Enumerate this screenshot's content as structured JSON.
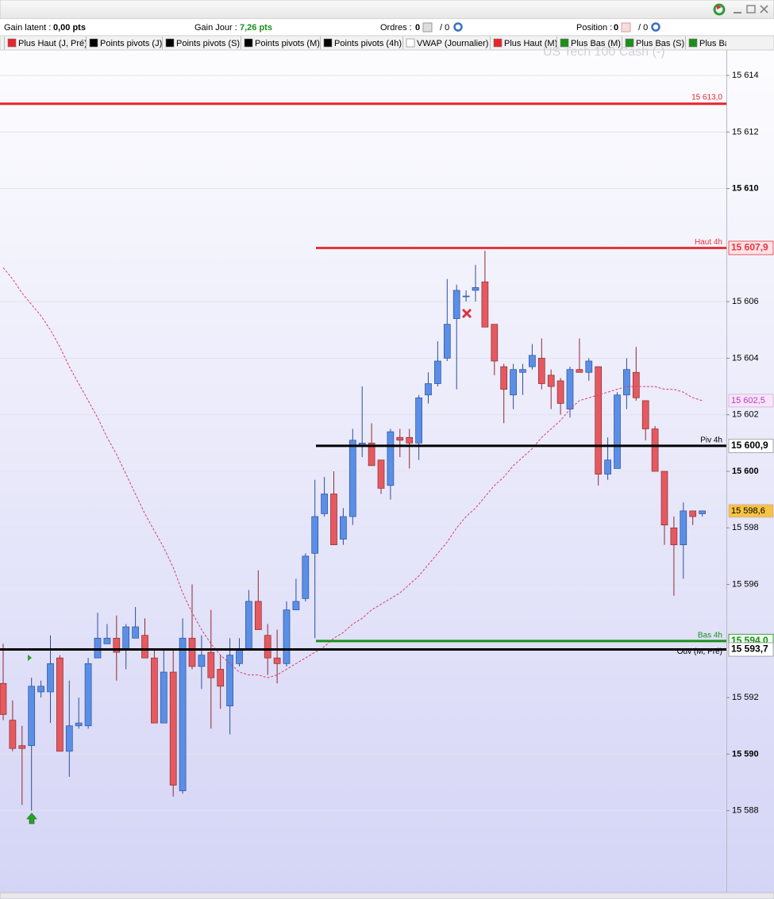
{
  "toolbar": {
    "gain_latent_label": "Gain latent :",
    "gain_latent": "0,00 pts",
    "gain_jour_label": "Gain Jour :",
    "gain_jour": "7,26 pts",
    "ordres_label": "Ordres :",
    "ordres": "0",
    "ordres_total": "/ 0",
    "position_label": "Position :",
    "position": "0",
    "position_total": "/ 0"
  },
  "indicators": [
    {
      "name": "Plus Haut (J, Pré)",
      "color": "#e8232a"
    },
    {
      "name": "Points pivots (J)",
      "color": "#000000"
    },
    {
      "name": "Points pivots (S)",
      "color": "#000000"
    },
    {
      "name": "Points pivots (M)",
      "color": "#000000"
    },
    {
      "name": "Points pivots (4h)",
      "color": "#000000"
    },
    {
      "name": "VWAP (Journalier)",
      "color": "#ffffff"
    },
    {
      "name": "Plus Haut (M)",
      "color": "#e8232a"
    },
    {
      "name": "Plus Bas (M)",
      "color": "#1a8f1a"
    },
    {
      "name": "Plus Bas (S)",
      "color": "#1a8f1a"
    },
    {
      "name": "Plus Ba",
      "color": "#1a8f1a"
    }
  ],
  "chart_data": {
    "type": "candlestick",
    "watermark": "US Tech 100 Cash (-)",
    "open": [
      15592.5,
      15591.2,
      15590.3,
      15590.3,
      15592.2,
      15592.2,
      15593.4,
      15590.1,
      15591.0,
      15591.0,
      15593.4,
      15593.9,
      15594.1,
      15593.7,
      15594.1,
      15594.2,
      15593.4,
      15591.1,
      15592.9,
      15588.7,
      15594.1,
      15593.1,
      15593.6,
      15593.0,
      15591.7,
      15593.2,
      15593.7,
      15595.4,
      15594.2,
      15593.4,
      15593.2,
      15595.1,
      15595.5,
      15597.1,
      15598.5,
      15599.2,
      15597.6,
      15598.4,
      15600.9,
      15601.0,
      15600.4,
      15599.5,
      15601.2,
      15601.2,
      15601.0,
      15602.7,
      15603.1,
      15604.0,
      15605.4,
      15606.2,
      15606.4,
      15606.7,
      15605.2,
      15603.7,
      15602.7,
      15603.5,
      15603.7,
      15604.0,
      15603.4,
      15603.2,
      15602.2,
      15603.6,
      15603.5,
      15603.7,
      15599.9,
      15600.1,
      15602.7,
      15603.5,
      15602.5,
      15601.5,
      15600.0,
      15598.0,
      15597.4,
      15598.6,
      15598.5
    ],
    "high": [
      15593.9,
      15591.9,
      15591.0,
      15592.7,
      15592.6,
      15594.2,
      15593.5,
      15592.6,
      15592.0,
      15593.4,
      15595.0,
      15594.6,
      15594.9,
      15594.6,
      15595.2,
      15594.8,
      15593.7,
      15593.7,
      15593.7,
      15594.8,
      15596.0,
      15594.2,
      15595.1,
      15593.5,
      15594.1,
      15594.1,
      15595.8,
      15596.5,
      15594.6,
      15594.4,
      15595.4,
      15596.2,
      15597.1,
      15599.7,
      15599.8,
      15600.0,
      15598.7,
      15601.5,
      15603.0,
      15601.7,
      15600.4,
      15601.5,
      15601.5,
      15601.5,
      15602.7,
      15603.5,
      15604.6,
      15606.8,
      15606.6,
      15606.4,
      15607.3,
      15607.8,
      15605.2,
      15603.8,
      15603.8,
      15603.8,
      15604.5,
      15604.7,
      15603.6,
      15603.3,
      15603.7,
      15604.7,
      15604.0,
      15603.7,
      15601.2,
      15602.8,
      15604.0,
      15604.4,
      15602.5,
      15601.6,
      15600.0,
      15598.4,
      15598.9,
      15598.6,
      15598.6
    ],
    "low": [
      15591.2,
      15590.1,
      15588.2,
      15588.0,
      15592.0,
      15591.1,
      15590.1,
      15589.2,
      15590.9,
      15590.9,
      15593.4,
      15593.9,
      15592.6,
      15593.0,
      15594.1,
      15593.4,
      15591.1,
      15591.1,
      15588.5,
      15588.6,
      15593.0,
      15592.3,
      15590.9,
      15591.6,
      15590.7,
      15593.1,
      15593.7,
      15594.4,
      15592.8,
      15592.5,
      15593.1,
      15595.1,
      15595.4,
      15594.1,
      15598.4,
      15597.4,
      15597.4,
      15598.1,
      15600.5,
      15600.2,
      15599.2,
      15599.0,
      15600.5,
      15600.1,
      15600.4,
      15602.4,
      15603.0,
      15603.9,
      15602.9,
      15606.0,
      15606.0,
      15605.1,
      15603.4,
      15601.7,
      15602.2,
      15602.7,
      15603.6,
      15602.9,
      15602.2,
      15602.0,
      15601.9,
      15603.5,
      15603.2,
      15599.5,
      15599.7,
      15600.1,
      15602.2,
      15602.5,
      15601.1,
      15600.0,
      15597.4,
      15595.6,
      15596.2,
      15598.1,
      15598.4
    ],
    "close": [
      15591.4,
      15590.2,
      15590.2,
      15592.4,
      15592.4,
      15593.2,
      15590.1,
      15591.0,
      15591.1,
      15593.2,
      15594.1,
      15594.1,
      15593.6,
      15594.5,
      15594.5,
      15593.4,
      15591.1,
      15592.9,
      15588.9,
      15594.1,
      15593.1,
      15593.5,
      15592.7,
      15592.4,
      15593.5,
      15593.7,
      15595.4,
      15594.4,
      15593.4,
      15593.2,
      15595.1,
      15595.4,
      15597.0,
      15598.4,
      15599.2,
      15597.4,
      15598.4,
      15601.1,
      15601.0,
      15600.2,
      15599.4,
      15601.4,
      15601.1,
      15601.0,
      15602.6,
      15603.1,
      15603.9,
      15605.2,
      15606.4,
      15606.2,
      15606.5,
      15605.1,
      15603.9,
      15602.9,
      15603.6,
      15603.6,
      15604.1,
      15603.1,
      15603.0,
      15602.4,
      15603.6,
      15603.5,
      15603.9,
      15599.9,
      15600.4,
      15602.7,
      15603.6,
      15602.6,
      15601.5,
      15600.0,
      15598.1,
      15597.4,
      15598.6,
      15598.4,
      15598.6
    ],
    "up_color": "#5b8fe6",
    "down_color": "#e45a60",
    "vwap": {
      "color": "#d8406e",
      "values": [
        15607.2,
        15606.8,
        15606.3,
        15605.9,
        15605.5,
        15605.0,
        15604.4,
        15603.7,
        15603.1,
        15602.5,
        15601.9,
        15601.2,
        15600.6,
        15599.9,
        15599.2,
        15598.5,
        15597.9,
        15597.3,
        15596.6,
        15595.7,
        15595.0,
        15594.4,
        15593.9,
        15593.5,
        15593.2,
        15592.9,
        15592.8,
        15592.8,
        15592.7,
        15592.8,
        15593.0,
        15593.2,
        15593.4,
        15593.6,
        15593.8,
        15594.1,
        15594.3,
        15594.6,
        15594.8,
        15595.1,
        15595.3,
        15595.5,
        15595.7,
        15596.0,
        15596.3,
        15596.7,
        15597.1,
        15597.5,
        15598.0,
        15598.4,
        15598.7,
        15599.1,
        15599.5,
        15599.8,
        15600.2,
        15600.5,
        15600.8,
        15601.2,
        15601.5,
        15601.8,
        15602.2,
        15602.5,
        15602.6,
        15602.7,
        15602.8,
        15602.9,
        15603.0,
        15603.0,
        15603.0,
        15603.0,
        15602.9,
        15602.9,
        15602.8,
        15602.6,
        15602.5
      ]
    },
    "ylim": [
      15585.1,
      15614.9
    ],
    "yticks": [
      {
        "value": 15614,
        "label": "15 614"
      },
      {
        "value": 15612,
        "label": "15 612"
      },
      {
        "value": 15610,
        "label": "15 610"
      },
      {
        "value": 15606,
        "label": "15 606"
      },
      {
        "value": 15604,
        "label": "15 604"
      },
      {
        "value": 15602,
        "label": "15 602"
      },
      {
        "value": 15600,
        "label": "15 600"
      },
      {
        "value": 15598,
        "label": "15 598"
      },
      {
        "value": 15596,
        "label": "15 596"
      },
      {
        "value": 15592,
        "label": "15 592"
      },
      {
        "value": 15590,
        "label": "15 590"
      },
      {
        "value": 15588,
        "label": "15 588"
      }
    ],
    "grid": true,
    "levels": [
      {
        "value": 15613.0,
        "value_label": "15 613,0",
        "color": "#e8232a",
        "background": "#ffffff"
      },
      {
        "value": 15607.9,
        "name": "Haut 4h",
        "value_label": "15 607,9",
        "color": "#e8343c",
        "background": "#fde2e6"
      },
      {
        "value": 15600.9,
        "name": "Piv 4h",
        "value_label": "15 600,9",
        "color": "#000000",
        "background": "#ffffff"
      },
      {
        "value": 15594.0,
        "name": "Bas 4h",
        "value_label": "15 594,0",
        "color": "#1a8f1a",
        "background": "#eef8ee"
      },
      {
        "value": 15593.7,
        "name": "Ouv (M, Pré)",
        "value_label": "15 593,7",
        "color": "#000000",
        "background": "#ffffff"
      }
    ],
    "markers": [
      {
        "value": 15602.5,
        "label": "15 602,5",
        "color": "#b53cc0",
        "background": "#f9e4f9"
      },
      {
        "value": 15598.6,
        "label": "15 598,6",
        "color": "#000000",
        "background": "#f6c342"
      }
    ]
  }
}
